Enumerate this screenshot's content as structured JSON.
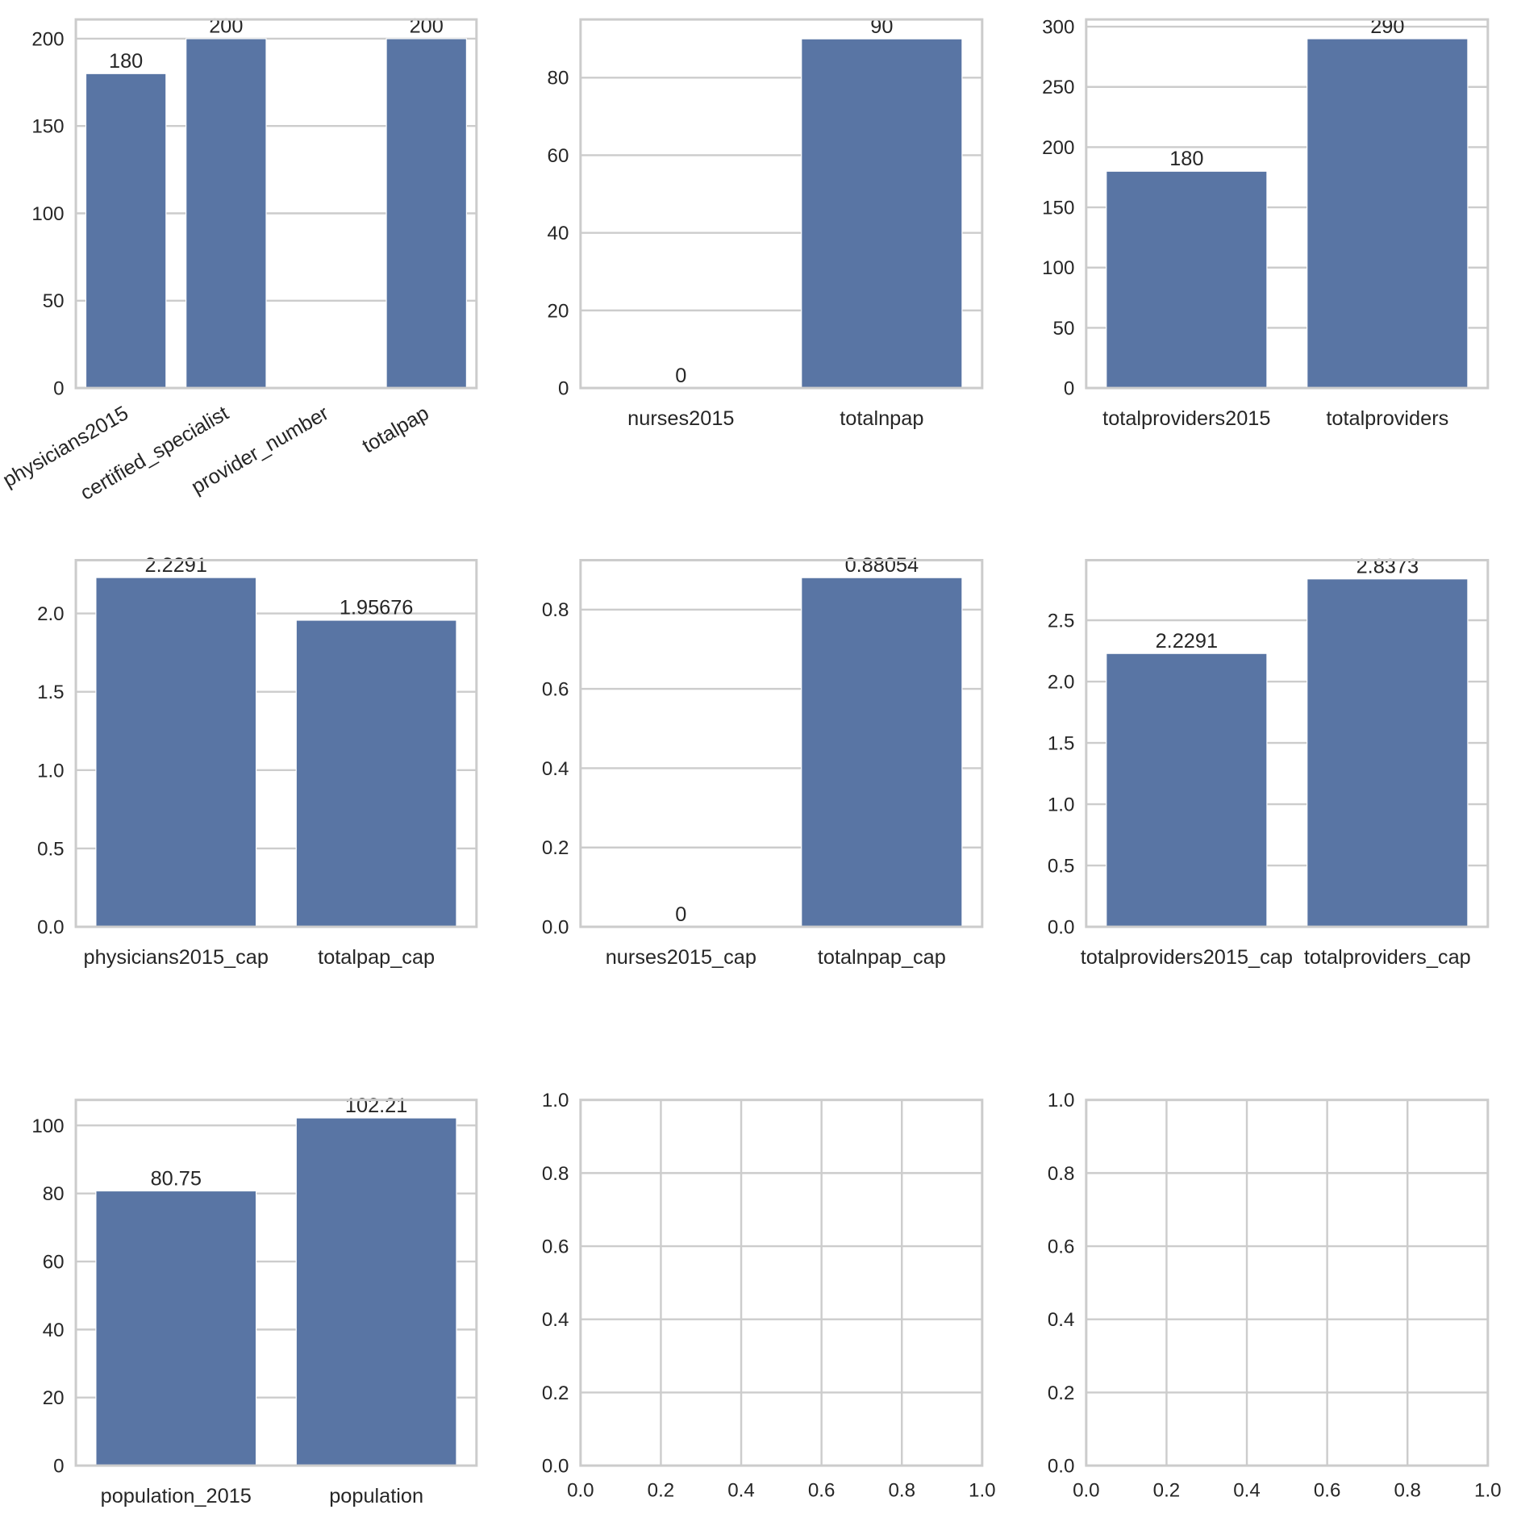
{
  "chart_data": [
    {
      "type": "bar",
      "categories": [
        "physicians2015",
        "certified_specialist",
        "provider_number",
        "totalpap"
      ],
      "values": [
        180,
        200,
        null,
        200
      ],
      "labels": [
        "180",
        "200",
        "",
        "200"
      ],
      "ylim": [
        0,
        211
      ],
      "yticks": [
        0,
        50,
        100,
        150,
        200
      ],
      "yticklabels": [
        "0",
        "50",
        "100",
        "150",
        "200"
      ],
      "xrotation": 30,
      "grid": true
    },
    {
      "type": "bar",
      "categories": [
        "nurses2015",
        "totalnpap"
      ],
      "values": [
        0,
        90
      ],
      "labels": [
        "0",
        "90"
      ],
      "ylim": [
        0,
        95
      ],
      "yticks": [
        0,
        20,
        40,
        60,
        80
      ],
      "yticklabels": [
        "0",
        "20",
        "40",
        "60",
        "80"
      ],
      "grid": true
    },
    {
      "type": "bar",
      "categories": [
        "totalproviders2015",
        "totalproviders"
      ],
      "values": [
        180,
        290
      ],
      "labels": [
        "180",
        "290"
      ],
      "ylim": [
        0,
        306
      ],
      "yticks": [
        0,
        50,
        100,
        150,
        200,
        250,
        300
      ],
      "yticklabels": [
        "0",
        "50",
        "100",
        "150",
        "200",
        "250",
        "300"
      ],
      "grid": true
    },
    {
      "type": "bar",
      "categories": [
        "physicians2015_cap",
        "totalpap_cap"
      ],
      "values": [
        2.2291,
        1.95676
      ],
      "labels": [
        "2.2291",
        "1.95676"
      ],
      "ylim": [
        0,
        2.34
      ],
      "yticks": [
        0,
        0.5,
        1,
        1.5,
        2
      ],
      "yticklabels": [
        "0.0",
        "0.5",
        "1.0",
        "1.5",
        "2.0"
      ],
      "grid": true
    },
    {
      "type": "bar",
      "categories": [
        "nurses2015_cap",
        "totalnpap_cap"
      ],
      "values": [
        0,
        0.88054
      ],
      "labels": [
        "0",
        "0.88054"
      ],
      "ylim": [
        0,
        0.9246
      ],
      "yticks": [
        0,
        0.2,
        0.4,
        0.6,
        0.8
      ],
      "yticklabels": [
        "0.0",
        "0.2",
        "0.4",
        "0.6",
        "0.8"
      ],
      "grid": true
    },
    {
      "type": "bar",
      "categories": [
        "totalproviders2015_cap",
        "totalproviders_cap"
      ],
      "values": [
        2.2291,
        2.8373
      ],
      "labels": [
        "2.2291",
        "2.8373"
      ],
      "ylim": [
        0,
        2.99
      ],
      "yticks": [
        0,
        0.5,
        1,
        1.5,
        2,
        2.5
      ],
      "yticklabels": [
        "0.0",
        "0.5",
        "1.0",
        "1.5",
        "2.0",
        "2.5"
      ],
      "grid": true
    },
    {
      "type": "bar",
      "categories": [
        "population_2015",
        "population"
      ],
      "values": [
        80.75,
        102.21
      ],
      "labels": [
        "80.75",
        "102.21"
      ],
      "ylim": [
        0,
        107.5
      ],
      "yticks": [
        0,
        20,
        40,
        60,
        80,
        100
      ],
      "yticklabels": [
        "0",
        "20",
        "40",
        "60",
        "80",
        "100"
      ],
      "grid": true
    },
    {
      "type": "empty",
      "xlim": [
        0,
        1
      ],
      "ylim": [
        0,
        1
      ],
      "xticks": [
        0,
        0.2,
        0.4,
        0.6,
        0.8,
        1
      ],
      "xticklabels": [
        "0.0",
        "0.2",
        "0.4",
        "0.6",
        "0.8",
        "1.0"
      ],
      "yticks": [
        0,
        0.2,
        0.4,
        0.6,
        0.8,
        1
      ],
      "yticklabels": [
        "0.0",
        "0.2",
        "0.4",
        "0.6",
        "0.8",
        "1.0"
      ],
      "grid": true
    },
    {
      "type": "empty",
      "xlim": [
        0,
        1
      ],
      "ylim": [
        0,
        1
      ],
      "xticks": [
        0,
        0.2,
        0.4,
        0.6,
        0.8,
        1
      ],
      "xticklabels": [
        "0.0",
        "0.2",
        "0.4",
        "0.6",
        "0.8",
        "1.0"
      ],
      "yticks": [
        0,
        0.2,
        0.4,
        0.6,
        0.8,
        1
      ],
      "yticklabels": [
        "0.0",
        "0.2",
        "0.4",
        "0.6",
        "0.8",
        "1.0"
      ],
      "grid": true
    }
  ],
  "colors": {
    "bar": "#5975a4",
    "grid": "#cccccc",
    "text": "#262626"
  }
}
